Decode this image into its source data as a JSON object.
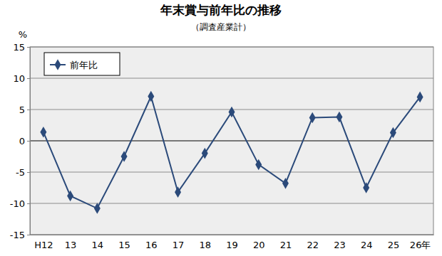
{
  "chart_data": {
    "type": "line",
    "title": "年末賞与前年比の推移",
    "subtitle": "（調査産業計）",
    "ylabel": "%",
    "categories": [
      "H12",
      "13",
      "14",
      "15",
      "16",
      "17",
      "18",
      "19",
      "20",
      "21",
      "22",
      "23",
      "24",
      "25",
      "26年"
    ],
    "series": [
      {
        "name": "前年比",
        "color": "#2b4a7a",
        "marker": "diamond",
        "line_style": "solid",
        "values": [
          1.4,
          -8.8,
          -10.8,
          -2.5,
          7.1,
          -8.2,
          -2.0,
          4.6,
          -3.8,
          -6.8,
          3.7,
          3.8,
          -7.5,
          1.3,
          7.0
        ]
      }
    ],
    "ylim": [
      -15,
      15
    ],
    "yticks": [
      -15,
      -10,
      -5,
      0,
      5,
      10,
      15
    ],
    "grid": true,
    "legend": "upper left"
  }
}
